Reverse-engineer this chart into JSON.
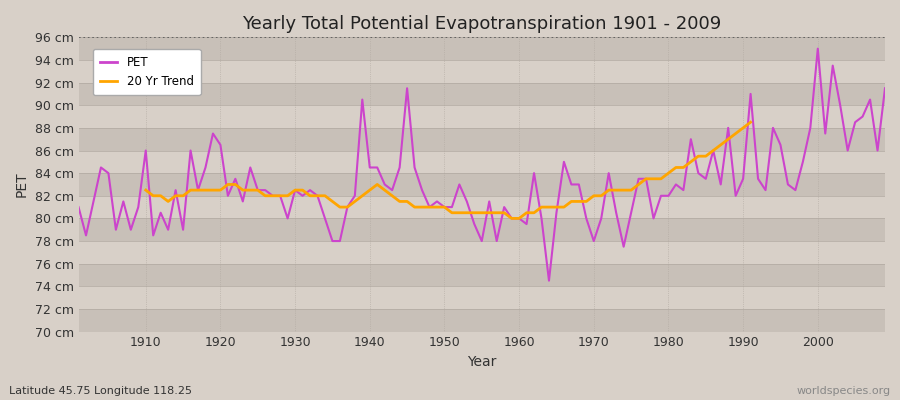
{
  "title": "Yearly Total Potential Evapotranspiration 1901 - 2009",
  "xlabel": "Year",
  "ylabel": "PET",
  "subtitle": "Latitude 45.75 Longitude 118.25",
  "watermark": "worldspecies.org",
  "bg_color": "#d8d0c8",
  "plot_bg_color": "#d8d0c8",
  "pet_color": "#cc44cc",
  "trend_color": "#ffa500",
  "ylim": [
    70,
    96
  ],
  "ytick_step": 2,
  "years": [
    1901,
    1902,
    1903,
    1904,
    1905,
    1906,
    1907,
    1908,
    1909,
    1910,
    1911,
    1912,
    1913,
    1914,
    1915,
    1916,
    1917,
    1918,
    1919,
    1920,
    1921,
    1922,
    1923,
    1924,
    1925,
    1926,
    1927,
    1928,
    1929,
    1930,
    1931,
    1932,
    1933,
    1934,
    1935,
    1936,
    1937,
    1938,
    1939,
    1940,
    1941,
    1942,
    1943,
    1944,
    1945,
    1946,
    1947,
    1948,
    1949,
    1950,
    1951,
    1952,
    1953,
    1954,
    1955,
    1956,
    1957,
    1958,
    1959,
    1960,
    1961,
    1962,
    1963,
    1964,
    1965,
    1966,
    1967,
    1968,
    1969,
    1970,
    1971,
    1972,
    1973,
    1974,
    1975,
    1976,
    1977,
    1978,
    1979,
    1980,
    1981,
    1982,
    1983,
    1984,
    1985,
    1986,
    1987,
    1988,
    1989,
    1990,
    1991,
    1992,
    1993,
    1994,
    1995,
    1996,
    1997,
    1998,
    1999,
    2000,
    2001,
    2002,
    2003,
    2004,
    2005,
    2006,
    2007,
    2008,
    2009
  ],
  "pet_values": [
    81.0,
    78.5,
    81.5,
    84.5,
    84.0,
    79.0,
    81.5,
    79.0,
    81.0,
    86.0,
    78.5,
    80.5,
    79.0,
    82.5,
    79.0,
    86.0,
    82.5,
    84.5,
    87.5,
    86.5,
    82.0,
    83.5,
    81.5,
    84.5,
    82.5,
    82.5,
    82.0,
    82.0,
    80.0,
    82.5,
    82.0,
    82.5,
    82.0,
    80.0,
    78.0,
    78.0,
    81.0,
    82.0,
    90.5,
    84.5,
    84.5,
    83.0,
    82.5,
    84.5,
    91.5,
    84.5,
    82.5,
    81.0,
    81.5,
    81.0,
    81.0,
    83.0,
    81.5,
    79.5,
    78.0,
    81.5,
    78.0,
    81.0,
    80.0,
    80.0,
    79.5,
    84.0,
    80.0,
    74.5,
    80.5,
    85.0,
    83.0,
    83.0,
    80.0,
    78.0,
    80.0,
    84.0,
    80.5,
    77.5,
    80.5,
    83.5,
    83.5,
    80.0,
    82.0,
    82.0,
    83.0,
    82.5,
    87.0,
    84.0,
    83.5,
    86.0,
    83.0,
    88.0,
    82.0,
    83.5,
    91.0,
    83.5,
    82.5,
    88.0,
    86.5,
    83.0,
    82.5,
    85.0,
    88.0,
    95.0,
    87.5,
    93.5,
    90.0,
    86.0,
    88.5,
    89.0,
    90.5,
    86.0,
    91.5
  ],
  "trend_values": [
    null,
    null,
    null,
    null,
    null,
    null,
    null,
    null,
    null,
    82.5,
    82.0,
    82.0,
    81.5,
    82.0,
    82.0,
    82.5,
    82.5,
    82.5,
    82.5,
    82.5,
    83.0,
    83.0,
    82.5,
    82.5,
    82.5,
    82.0,
    82.0,
    82.0,
    82.0,
    82.5,
    82.5,
    82.0,
    82.0,
    82.0,
    81.5,
    81.0,
    81.0,
    81.5,
    82.0,
    82.5,
    83.0,
    82.5,
    82.0,
    81.5,
    81.5,
    81.0,
    81.0,
    81.0,
    81.0,
    81.0,
    80.5,
    80.5,
    80.5,
    80.5,
    80.5,
    80.5,
    80.5,
    80.5,
    80.0,
    80.0,
    80.5,
    80.5,
    81.0,
    81.0,
    81.0,
    81.0,
    81.5,
    81.5,
    81.5,
    82.0,
    82.0,
    82.5,
    82.5,
    82.5,
    82.5,
    83.0,
    83.5,
    83.5,
    83.5,
    84.0,
    84.5,
    84.5,
    85.0,
    85.5,
    85.5,
    86.0,
    86.5,
    87.0,
    87.5,
    88.0,
    88.5,
    null,
    null,
    null,
    null,
    null,
    null,
    null,
    null,
    null,
    null,
    null,
    null,
    null,
    null,
    null,
    null,
    null,
    null
  ]
}
